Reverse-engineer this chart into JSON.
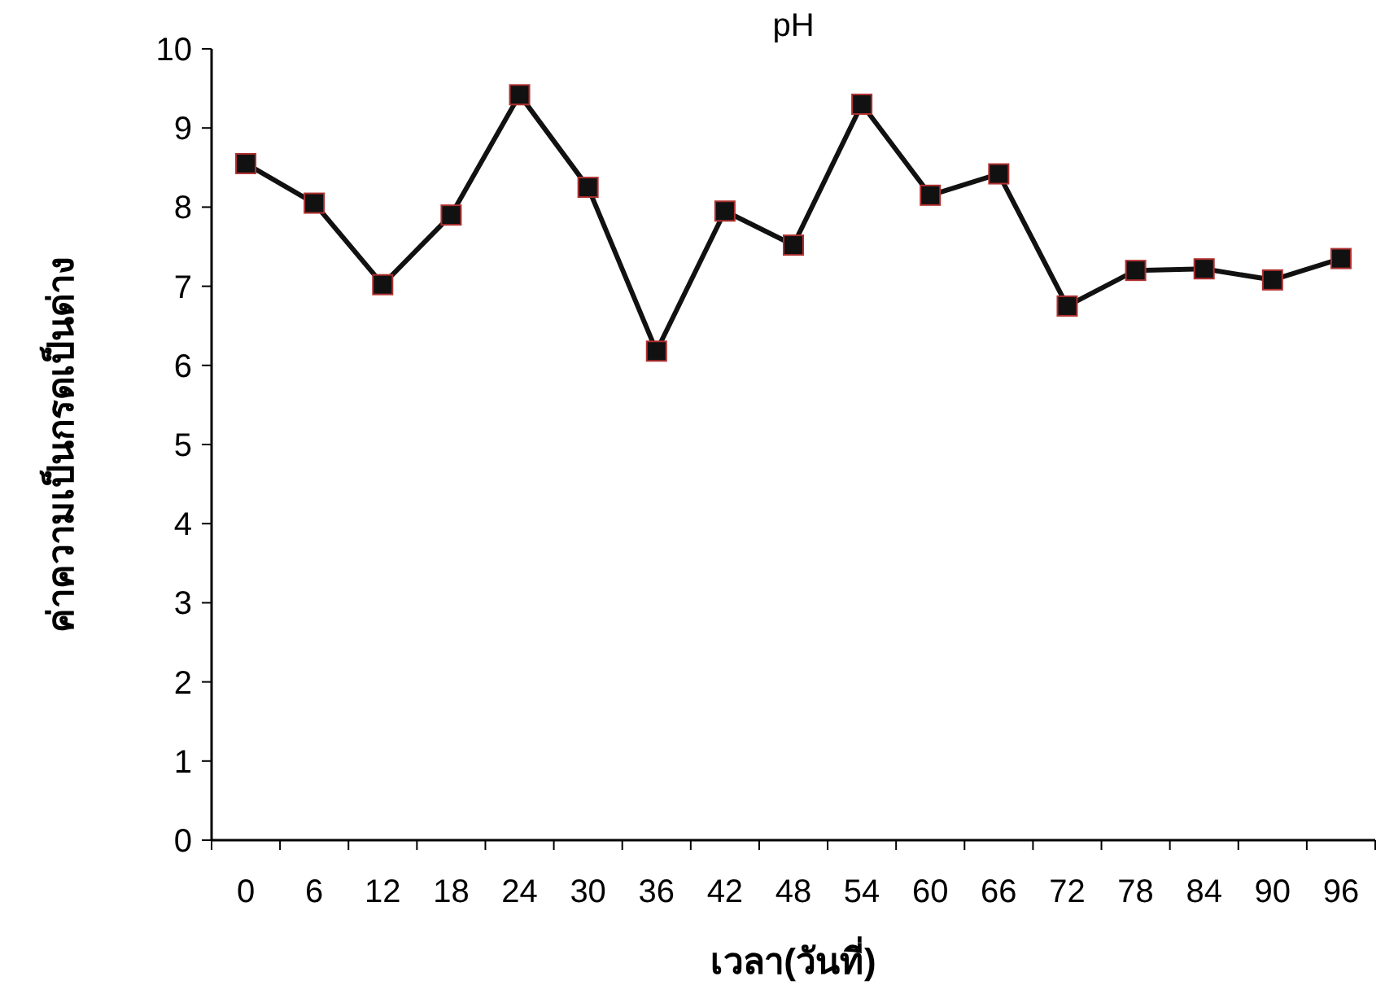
{
  "chart_data": {
    "type": "line",
    "title": "pH",
    "xlabel": "เวลา(วันที่)",
    "ylabel": "ค่าความเป็นกรดเป็นด่าง",
    "categories": [
      "0",
      "6",
      "12",
      "18",
      "24",
      "30",
      "36",
      "42",
      "48",
      "54",
      "60",
      "66",
      "72",
      "78",
      "84",
      "90",
      "96"
    ],
    "series": [
      {
        "color": "#111111",
        "values": [
          8.55,
          8.05,
          7.02,
          7.9,
          9.42,
          8.25,
          6.18,
          7.95,
          7.52,
          9.3,
          8.15,
          8.42,
          6.75,
          7.2,
          7.22,
          7.08,
          7.35
        ]
      }
    ],
    "ylim": [
      0,
      10
    ],
    "yticks": [
      0,
      1,
      2,
      3,
      4,
      5,
      6,
      7,
      8,
      9,
      10
    ],
    "grid": false,
    "marker": "square",
    "line_style": "solid"
  }
}
